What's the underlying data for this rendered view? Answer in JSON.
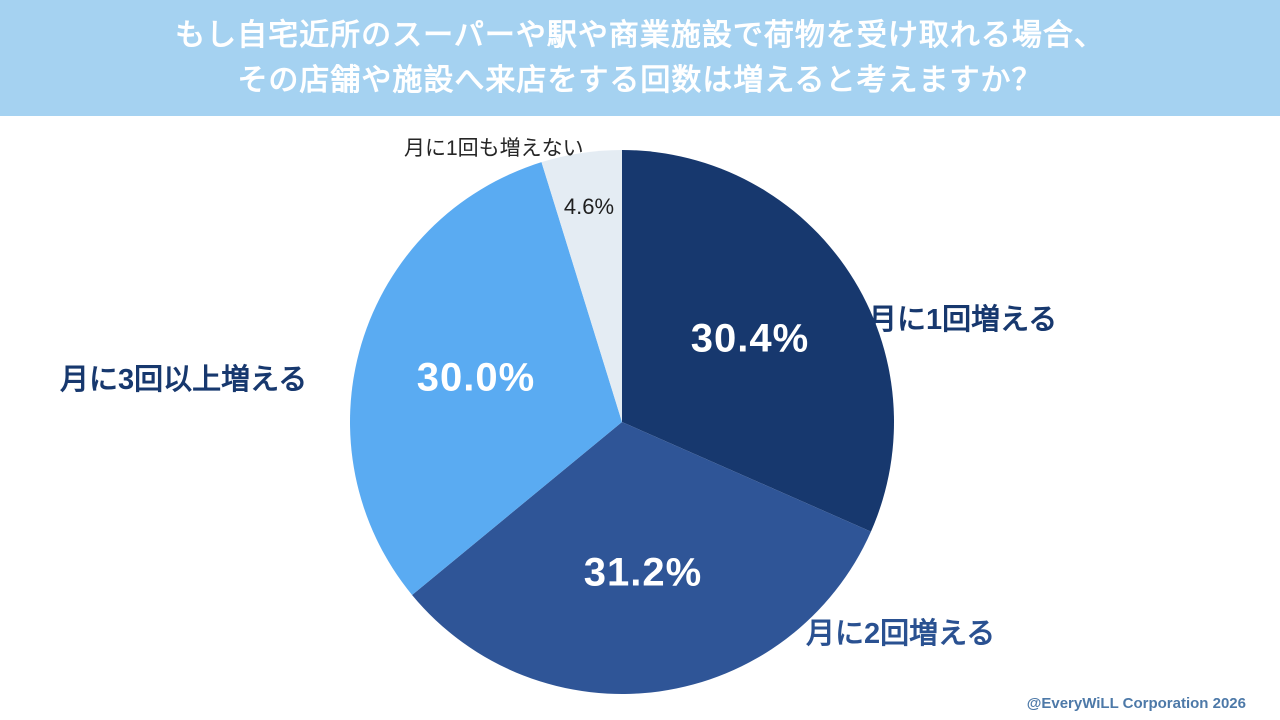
{
  "title": {
    "line1": "もし自宅近所のスーパーや駅や商業施設で荷物を受け取れる場合、",
    "line2": "その店舗や施設へ来店をする回数は増えると考えますか？"
  },
  "banner_color": "#a5d2f1",
  "footer": {
    "credit": "@EveryWiLL Corporation 2026",
    "color": "#4d79a8"
  },
  "chart_data": {
    "type": "pie",
    "title": "もし自宅近所のスーパーや駅や商業施設で荷物を受け取れる場合、その店舗や施設へ来店をする回数は増えると考えますか？",
    "start_angle_deg": 0,
    "direction": "clockwise",
    "total": 100,
    "legend_position": "none",
    "value_label_format": "percent_one_decimal",
    "slices": [
      {
        "label": "月に1回増える",
        "value": 30.4,
        "color": "#17386e",
        "value_color": "#ffffff",
        "label_color": "#17386e"
      },
      {
        "label": "月に2回増える",
        "value": 31.2,
        "color": "#2f5597",
        "value_color": "#ffffff",
        "label_color": "#2a5191"
      },
      {
        "label": "月に3回以上増える",
        "value": 30.0,
        "color": "#5aabf2",
        "value_color": "#ffffff",
        "label_color": "#17386e"
      },
      {
        "label": "月に1回も増えない",
        "value": 4.6,
        "color": "#e4ecf3",
        "value_color": "#1f1f1f",
        "label_color": "#262626"
      }
    ]
  }
}
